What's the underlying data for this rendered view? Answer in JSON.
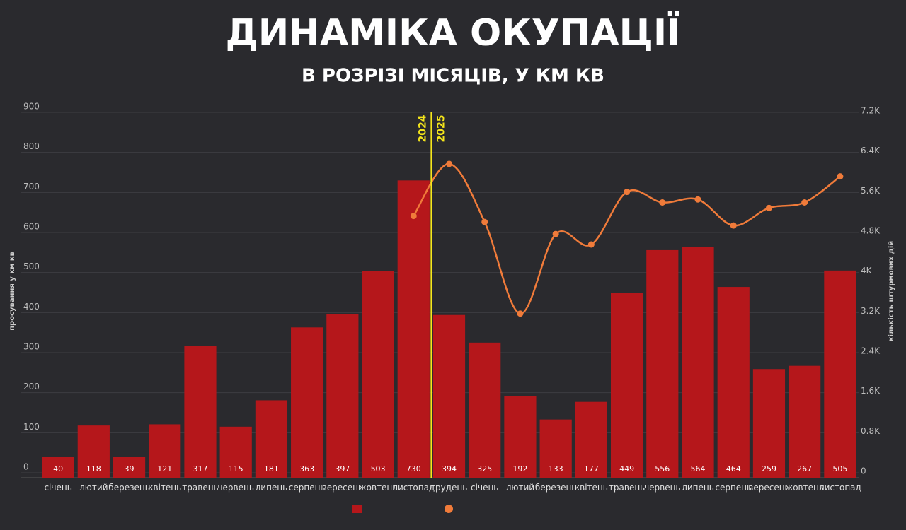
{
  "chart_data": {
    "type": "bar_line",
    "title": "ДИНАМІКА ОКУПАЦІЇ",
    "subtitle": "В РОЗРІЗІ МІСЯЦІВ, У КМ КВ",
    "y_label": "просування у км кв",
    "y2_label": "кількість штурмових дій",
    "annotations": [
      "2024",
      "2025"
    ],
    "categories": [
      "січень",
      "лютий",
      "березень",
      "квітень",
      "травень",
      "червень",
      "липень",
      "серпень",
      "вересень",
      "жовтень",
      "листопад",
      "грудень",
      "січень",
      "лютий",
      "березень",
      "квітень",
      "травень",
      "червень",
      "липень",
      "серпень",
      "вересень",
      "жовтень",
      "листопад"
    ],
    "series": [
      {
        "type": "bar",
        "color": "#b5171b",
        "values": [
          40,
          118,
          39,
          121,
          317,
          115,
          181,
          363,
          397,
          503,
          730,
          394,
          325,
          192,
          133,
          177,
          449,
          556,
          564,
          464,
          259,
          267,
          505
        ]
      },
      {
        "type": "line",
        "axis": "y2",
        "color": "#f07b3a",
        "values": [
          null,
          null,
          null,
          null,
          null,
          null,
          null,
          null,
          null,
          null,
          5130,
          6170,
          5010,
          3180,
          4770,
          4560,
          5610,
          5400,
          5460,
          4940,
          5290,
          5400,
          5920
        ]
      }
    ],
    "ylim": [
      0,
      900
    ],
    "yticks": [
      0,
      100,
      200,
      300,
      400,
      500,
      600,
      700,
      800,
      900
    ],
    "y2lim": [
      0,
      7200
    ],
    "y2ticks": [
      0,
      {
        "value": 800,
        "label": "0.8K"
      },
      {
        "value": 1600,
        "label": "1.6K"
      },
      {
        "value": 2400,
        "label": "2.4K"
      },
      {
        "value": 3200,
        "label": "3.2K"
      },
      {
        "value": 4000,
        "label": "4K"
      },
      {
        "value": 4800,
        "label": "4.8K"
      },
      {
        "value": 5600,
        "label": "5.6K"
      },
      {
        "value": 6400,
        "label": "6.4K"
      },
      {
        "value": 7200,
        "label": "7.2K"
      }
    ],
    "grid": true,
    "divider_color": "#f5e61b"
  }
}
